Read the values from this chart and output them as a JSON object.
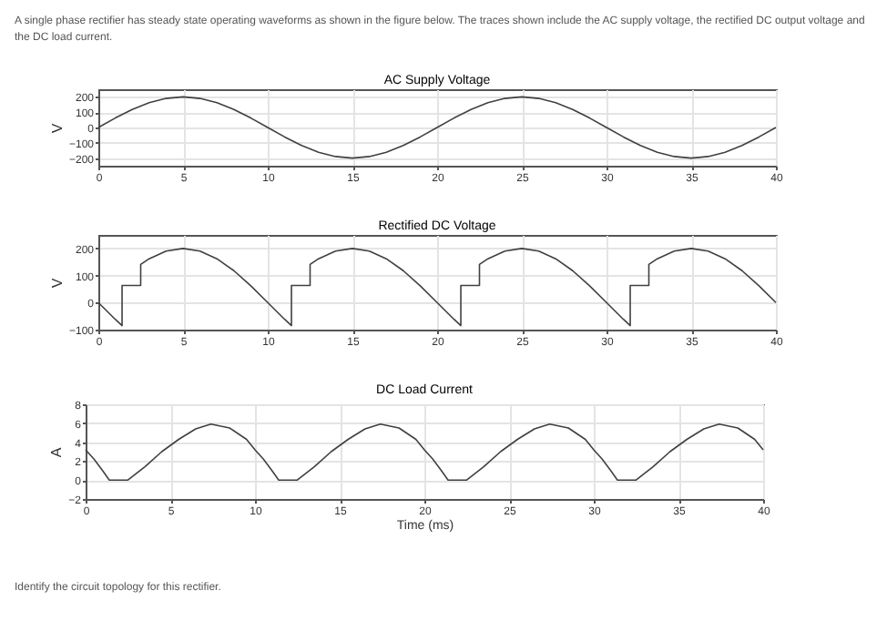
{
  "chart_data": [
    {
      "type": "line",
      "title": "AC Supply Voltage",
      "ylabel": "V",
      "annotations": [
        "A single phase rectifier has steady state operating waveforms as shown in the figure below. The traces shown include the AC supply voltage, the rectified DC output voltage and the DC load current."
      ],
      "color": "#404040",
      "grid": true,
      "xlim": [
        0,
        40
      ],
      "xticks": [
        0,
        5,
        10,
        15,
        20,
        25,
        30,
        35,
        40
      ],
      "ylim": [
        -250,
        250
      ],
      "yticks": [
        -200,
        -100,
        0,
        100,
        200
      ],
      "x": [
        0,
        1,
        2,
        3,
        4,
        5,
        6,
        7,
        8,
        9,
        10,
        11,
        12,
        13,
        14,
        15,
        16,
        17,
        18,
        19,
        20,
        21,
        22,
        23,
        24,
        25,
        26,
        27,
        28,
        29,
        30,
        31,
        32,
        33,
        34,
        35,
        36,
        37,
        38,
        39,
        40
      ],
      "values": [
        0,
        62,
        118,
        162,
        190,
        200,
        190,
        162,
        118,
        62,
        0,
        -62,
        -118,
        -162,
        -190,
        -200,
        -190,
        -162,
        -118,
        -62,
        0,
        62,
        118,
        162,
        190,
        200,
        190,
        162,
        118,
        62,
        0,
        -62,
        -118,
        -162,
        -190,
        -200,
        -190,
        -162,
        -118,
        -62,
        0
      ]
    },
    {
      "type": "line",
      "title": "Rectified DC Voltage",
      "ylabel": "V",
      "color": "#404040",
      "grid": true,
      "xlim": [
        0,
        40
      ],
      "xticks": [
        0,
        5,
        10,
        15,
        20,
        25,
        30,
        35,
        40
      ],
      "ylim": [
        -100,
        250
      ],
      "yticks": [
        -100,
        0,
        100,
        200
      ],
      "x": [
        0,
        1,
        1.4,
        1.4,
        2.5,
        2.5,
        3,
        4,
        5,
        6,
        7,
        8,
        9,
        10,
        11,
        11.4,
        11.4,
        12.5,
        12.5,
        13,
        14,
        15,
        16,
        17,
        18,
        19,
        20,
        21,
        21.4,
        21.4,
        22.5,
        22.5,
        23,
        24,
        25,
        26,
        27,
        28,
        29,
        30,
        31,
        31.4,
        31.4,
        32.5,
        32.5,
        33,
        34,
        35,
        36,
        37,
        38,
        39,
        40
      ],
      "values": [
        0,
        -62,
        -85,
        63,
        63,
        141,
        162,
        190,
        200,
        190,
        162,
        118,
        62,
        0,
        -62,
        -85,
        63,
        63,
        141,
        162,
        190,
        200,
        190,
        162,
        118,
        62,
        0,
        -62,
        -85,
        63,
        63,
        141,
        162,
        190,
        200,
        190,
        162,
        118,
        62,
        0,
        -62,
        -85,
        63,
        63,
        141,
        162,
        190,
        200,
        190,
        162,
        118,
        62,
        0
      ]
    },
    {
      "type": "line",
      "title": "DC Load Current",
      "xlabel": "Time (ms)",
      "ylabel": "A",
      "annotations": [
        "Identify the circuit topology for this rectifier."
      ],
      "color": "#404040",
      "grid": true,
      "xlim": [
        0,
        40
      ],
      "xticks": [
        0,
        5,
        10,
        15,
        20,
        25,
        30,
        35,
        40
      ],
      "ylim": [
        -2,
        8
      ],
      "yticks": [
        -2,
        0,
        2,
        4,
        6,
        8
      ],
      "x": [
        0,
        0.5,
        1,
        1.4,
        2.5,
        3.5,
        4.5,
        5.5,
        6.5,
        7.4,
        8.5,
        9.5,
        10,
        10.5,
        11,
        11.4,
        12.5,
        13.5,
        14.5,
        15.5,
        16.5,
        17.4,
        18.5,
        19.5,
        20,
        20.5,
        21,
        21.4,
        22.5,
        23.5,
        24.5,
        25.5,
        26.5,
        27.4,
        28.5,
        29.5,
        30,
        30.5,
        31,
        31.4,
        32.5,
        33.5,
        34.5,
        35.5,
        36.5,
        37.4,
        38.5,
        39.5,
        40
      ],
      "values": [
        3.2,
        2.2,
        1.0,
        0,
        0,
        1.4,
        3.0,
        4.3,
        5.4,
        5.9,
        5.5,
        4.3,
        3.2,
        2.2,
        1.0,
        0,
        0,
        1.4,
        3.0,
        4.3,
        5.4,
        5.9,
        5.5,
        4.3,
        3.2,
        2.2,
        1.0,
        0,
        0,
        1.4,
        3.0,
        4.3,
        5.4,
        5.9,
        5.5,
        4.3,
        3.2,
        2.2,
        1.0,
        0,
        0,
        1.4,
        3.0,
        4.3,
        5.4,
        5.9,
        5.5,
        4.3,
        3.2
      ]
    }
  ]
}
